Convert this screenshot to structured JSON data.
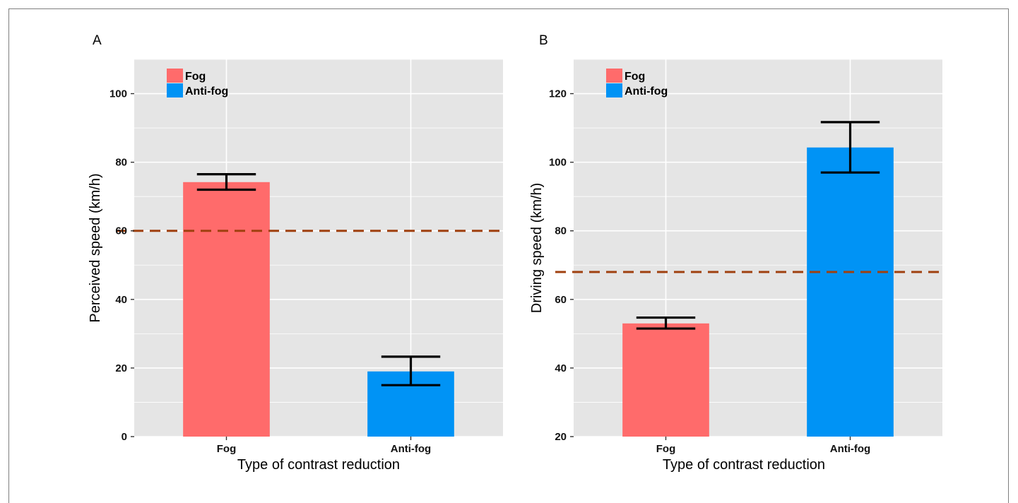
{
  "colors": {
    "panel_bg": "#e5e5e5",
    "grid": "#ffffff",
    "fog": "#ff6b6b",
    "anti_fog": "#0093f5",
    "reference_line": "#a0400f",
    "error_bar": "#000000"
  },
  "chart_data": [
    {
      "panel": "A",
      "type": "bar",
      "categories": [
        "Fog",
        "Anti-fog"
      ],
      "values": [
        74.2,
        19.0
      ],
      "error_low": [
        72.0,
        15.0
      ],
      "error_high": [
        76.5,
        23.3
      ],
      "reference_line": 60,
      "reference_line_style": "dashed",
      "xlabel": "Type of contrast reduction",
      "ylabel": "Perceived speed (km/h)",
      "ylim": [
        0,
        110
      ],
      "yticks": [
        0,
        20,
        40,
        60,
        80,
        100
      ],
      "legend": [
        "Fog",
        "Anti-fog"
      ],
      "legend_position": "top-left",
      "grid": true
    },
    {
      "panel": "B",
      "type": "bar",
      "categories": [
        "Fog",
        "Anti-fog"
      ],
      "values": [
        53.0,
        104.3
      ],
      "error_low": [
        51.5,
        97.0
      ],
      "error_high": [
        54.7,
        111.7
      ],
      "reference_line": 68,
      "reference_line_style": "dashed",
      "xlabel": "Type of contrast reduction",
      "ylabel": "Driving speed (km/h)",
      "ylim": [
        20,
        130
      ],
      "yticks": [
        20,
        40,
        60,
        80,
        100,
        120
      ],
      "legend": [
        "Fog",
        "Anti-fog"
      ],
      "legend_position": "top-left",
      "grid": true
    }
  ]
}
